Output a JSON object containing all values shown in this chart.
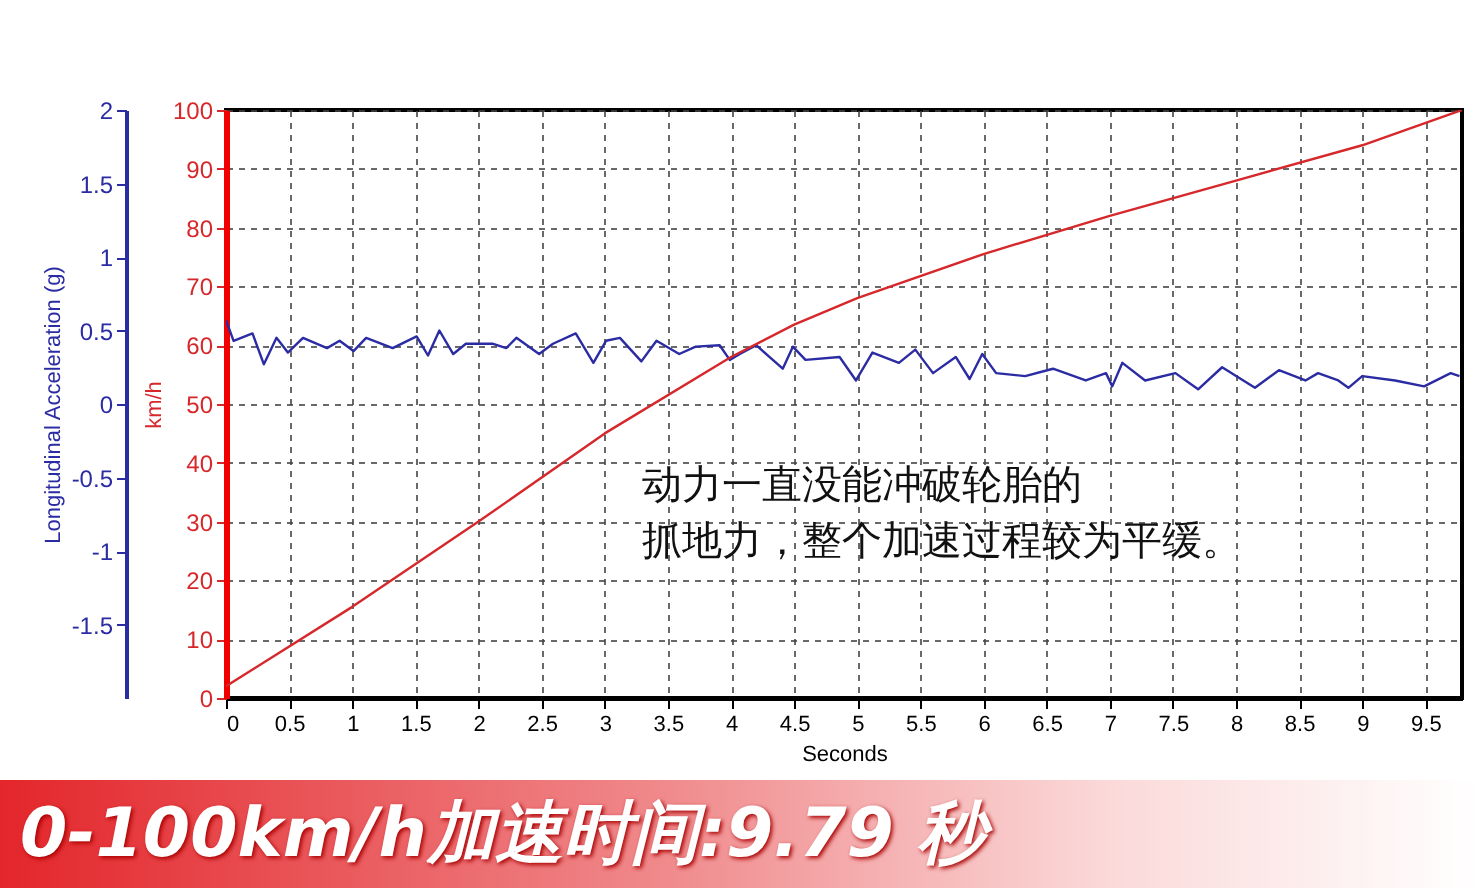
{
  "chart_data": {
    "type": "line",
    "xlabel": "Seconds",
    "ylabel": "Longitudinal Acceleration (g)",
    "y2label": "km/h",
    "xlim": [
      0,
      9.79
    ],
    "xticks": [
      0,
      0.5,
      1,
      1.5,
      2,
      2.5,
      3,
      3.5,
      4,
      4.5,
      5,
      5.5,
      6,
      6.5,
      7,
      7.5,
      8,
      8.5,
      9,
      9.5
    ],
    "ylim": [
      -2,
      2
    ],
    "yticks": [
      -1.5,
      -1,
      -0.5,
      0,
      0.5,
      1,
      1.5,
      2
    ],
    "y2lim": [
      0,
      100
    ],
    "y2ticks": [
      0,
      10,
      20,
      30,
      40,
      50,
      60,
      70,
      80,
      90,
      100
    ],
    "grid": true,
    "series": [
      {
        "color": "#2b2ba3",
        "axis": "y",
        "x": [
          0,
          0.06,
          0.21,
          0.3,
          0.4,
          0.49,
          0.61,
          0.8,
          0.9,
          1.01,
          1.11,
          1.32,
          1.51,
          1.6,
          1.69,
          1.8,
          1.9,
          2.11,
          2.22,
          2.3,
          2.48,
          2.59,
          2.77,
          2.91,
          3.01,
          3.12,
          3.29,
          3.41,
          3.59,
          3.72,
          3.91,
          3.99,
          4.07,
          4.2,
          4.41,
          4.49,
          4.59,
          4.86,
          4.99,
          5.12,
          5.33,
          5.46,
          5.6,
          5.78,
          5.89,
          5.99,
          6.1,
          6.33,
          6.55,
          6.81,
          6.97,
          7.02,
          7.1,
          7.28,
          7.52,
          7.7,
          7.89,
          8.15,
          8.34,
          8.55,
          8.65,
          8.81,
          8.89,
          9.0,
          9.26,
          9.49,
          9.7,
          9.77
        ],
        "values": [
          0.57,
          0.43,
          0.48,
          0.27,
          0.45,
          0.35,
          0.45,
          0.38,
          0.43,
          0.36,
          0.45,
          0.38,
          0.46,
          0.33,
          0.5,
          0.34,
          0.41,
          0.41,
          0.38,
          0.45,
          0.34,
          0.41,
          0.48,
          0.28,
          0.43,
          0.45,
          0.29,
          0.43,
          0.34,
          0.39,
          0.4,
          0.3,
          0.34,
          0.4,
          0.24,
          0.39,
          0.3,
          0.32,
          0.16,
          0.35,
          0.28,
          0.37,
          0.21,
          0.32,
          0.17,
          0.34,
          0.21,
          0.19,
          0.24,
          0.16,
          0.21,
          0.12,
          0.28,
          0.16,
          0.21,
          0.1,
          0.25,
          0.11,
          0.23,
          0.16,
          0.21,
          0.16,
          0.11,
          0.19,
          0.16,
          0.12,
          0.21,
          0.19
        ]
      },
      {
        "color": "#d6282b",
        "axis": "y2",
        "x": [
          0,
          1,
          2,
          3,
          4,
          4.5,
          5,
          6,
          7,
          8,
          9,
          9.79
        ],
        "values": [
          2,
          15.5,
          30,
          45,
          58,
          63.5,
          68,
          75.5,
          82,
          88,
          94,
          100
        ]
      }
    ],
    "annotations": [
      "动力一直没能冲破轮胎的",
      "抓地力，整个加速过程较为平缓。",
      "0-100km/h加速时间:9.79 秒"
    ]
  }
}
